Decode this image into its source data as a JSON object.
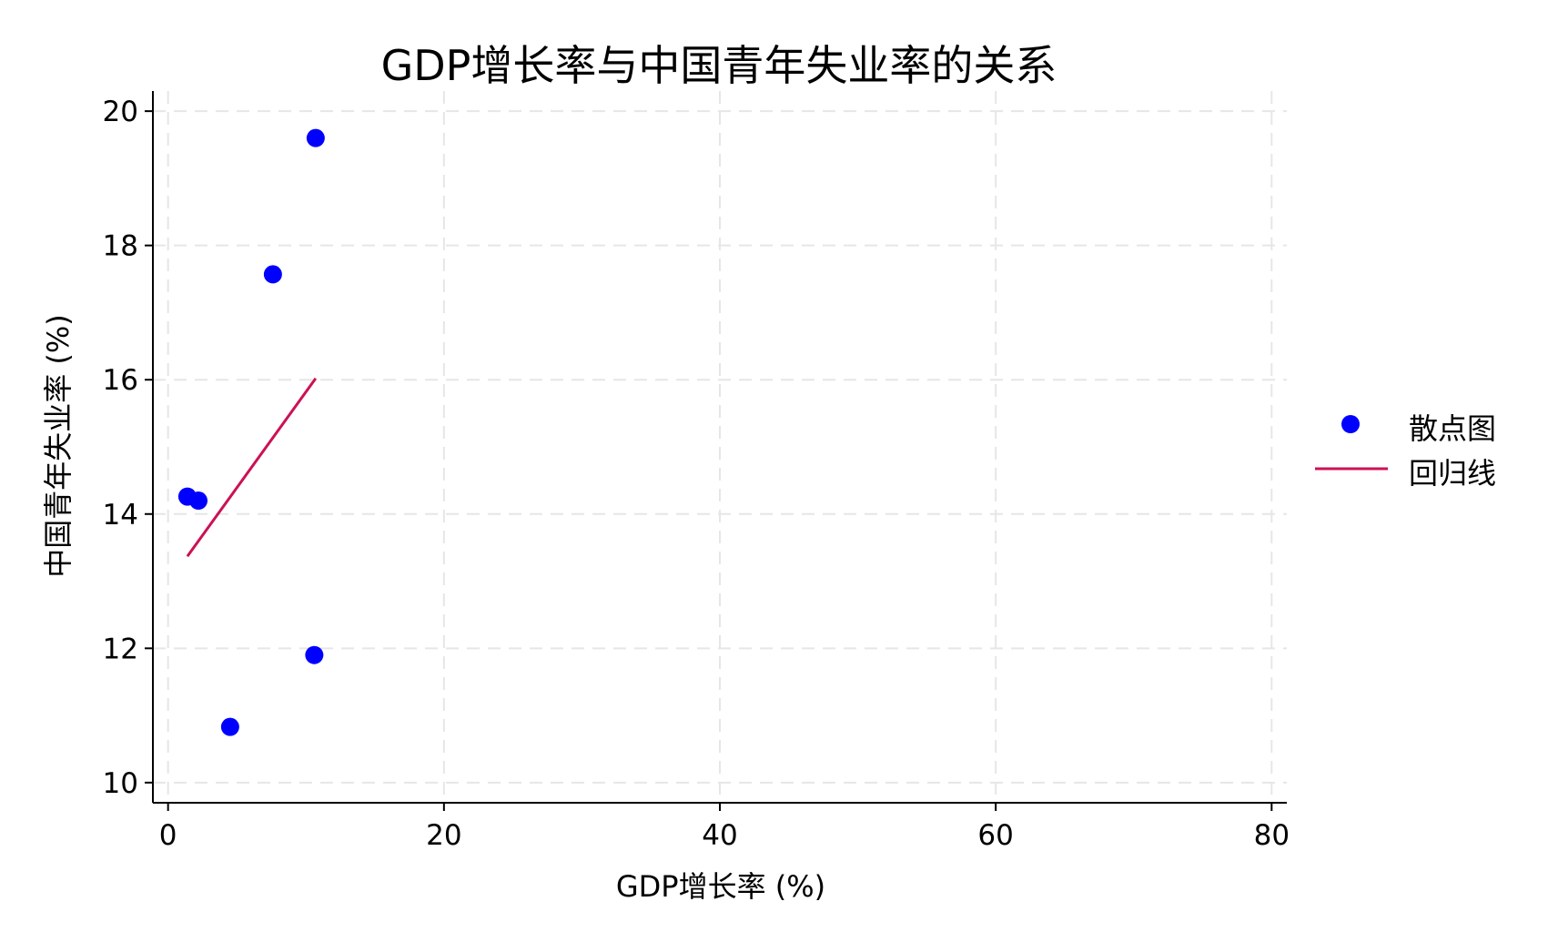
{
  "chart_data": {
    "type": "scatter",
    "title": "GDP增长率与中国青年失业率的关系",
    "xlabel": "GDP增长率 (%)",
    "ylabel": "中国青年失业率 (%)",
    "xlim": [
      -1.1,
      81.1
    ],
    "ylim": [
      9.7,
      20.3
    ],
    "xticks": [
      0,
      20,
      40,
      60,
      80
    ],
    "yticks": [
      10,
      12,
      14,
      16,
      18,
      20
    ],
    "grid": true,
    "legend_position": "right",
    "series": [
      {
        "name": "散点图",
        "type": "scatter",
        "color": "#0000ff",
        "points": [
          {
            "x": 10.7,
            "y": 19.6
          },
          {
            "x": 7.6,
            "y": 17.57
          },
          {
            "x": 1.4,
            "y": 14.26
          },
          {
            "x": 2.2,
            "y": 14.2
          },
          {
            "x": 10.6,
            "y": 11.9
          },
          {
            "x": 4.5,
            "y": 10.83
          }
        ]
      },
      {
        "name": "回归线",
        "type": "line",
        "color": "#cc1155",
        "points": [
          {
            "x": 1.4,
            "y": 13.37
          },
          {
            "x": 10.7,
            "y": 16.02
          }
        ]
      }
    ]
  }
}
